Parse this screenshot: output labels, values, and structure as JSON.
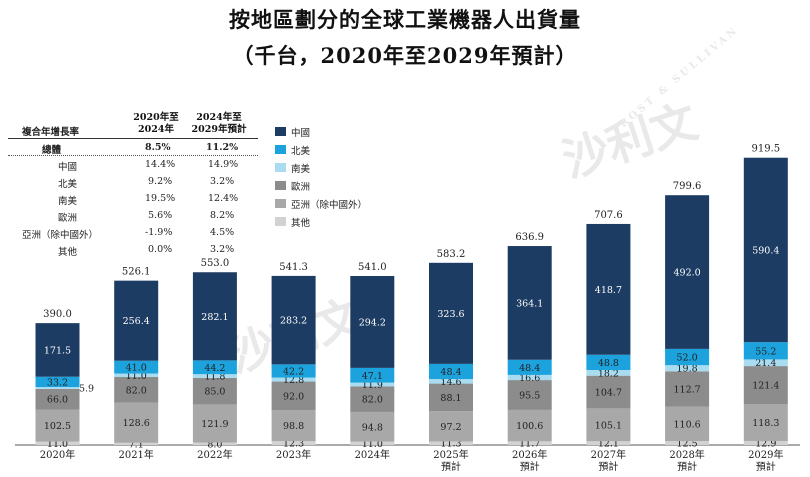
{
  "title": {
    "line1": "按地區劃分的全球工業機器人出貨量",
    "line2": "（千台，2020年至2029年預計）"
  },
  "cagr_table": {
    "header_label": "複合年增長率",
    "col1_header_line1": "2020年至",
    "col1_header_line2": "2024年",
    "col2_header_line1": "2024年至",
    "col2_header_line2": "2029年預計",
    "rows": [
      {
        "label": "總體",
        "v1": "8.5%",
        "v2": "11.2%"
      },
      {
        "label": "中國",
        "v1": "14.4%",
        "v2": "14.9%"
      },
      {
        "label": "北美",
        "v1": "9.2%",
        "v2": "3.2%"
      },
      {
        "label": "南美",
        "v1": "19.5%",
        "v2": "12.4%"
      },
      {
        "label": "歐洲",
        "v1": "5.6%",
        "v2": "8.2%"
      },
      {
        "label": "亞洲（除中國外）",
        "v1": "-1.9%",
        "v2": "4.5%"
      },
      {
        "label": "其他",
        "v1": "0.0%",
        "v2": "3.2%"
      }
    ]
  },
  "legend": [
    {
      "label": "中國",
      "color": "#1d3c63"
    },
    {
      "label": "北美",
      "color": "#1ca3dd"
    },
    {
      "label": "南美",
      "color": "#a9dcf0"
    },
    {
      "label": "歐洲",
      "color": "#8c8c8c"
    },
    {
      "label": "亞洲（除中國外）",
      "color": "#a8a8a8"
    },
    {
      "label": "其他",
      "color": "#d2d2d2"
    }
  ],
  "watermark": {
    "text1": "沙利文",
    "text2": "FROST & SULLIVAN"
  },
  "chart_data": {
    "type": "bar",
    "stacked": true,
    "categories": [
      "2020年",
      "2021年",
      "2022年",
      "2023年",
      "2024年",
      "2025年\n預計",
      "2026年\n預計",
      "2027年\n預計",
      "2028年\n預計",
      "2029年\n預計"
    ],
    "totals": [
      "390.0",
      "526.1",
      "553.0",
      "541.3",
      "541.0",
      "583.2",
      "636.9",
      "707.6",
      "799.6",
      "919.5"
    ],
    "series": [
      {
        "name": "其他",
        "color": "#d2d2d2",
        "values": [
          11.0,
          7.1,
          8.0,
          12.3,
          11.0,
          11.3,
          11.7,
          12.1,
          12.5,
          12.9
        ]
      },
      {
        "name": "亞洲（除中國外）",
        "color": "#a8a8a8",
        "values": [
          102.5,
          128.6,
          121.9,
          98.8,
          94.8,
          97.2,
          100.6,
          105.1,
          110.6,
          118.3
        ]
      },
      {
        "name": "歐洲",
        "color": "#8c8c8c",
        "values": [
          66.0,
          82.0,
          85.0,
          92.0,
          82.0,
          88.1,
          95.5,
          104.7,
          112.7,
          121.4
        ]
      },
      {
        "name": "南美",
        "color": "#a9dcf0",
        "values": [
          5.9,
          11.0,
          11.8,
          12.8,
          11.9,
          14.6,
          16.6,
          18.2,
          19.8,
          21.4
        ]
      },
      {
        "name": "北美",
        "color": "#1ca3dd",
        "values": [
          33.2,
          41.0,
          44.2,
          42.2,
          47.1,
          48.4,
          48.4,
          48.8,
          52.0,
          55.2
        ]
      },
      {
        "name": "中國",
        "color": "#1d3c63",
        "values": [
          171.5,
          256.4,
          282.1,
          283.2,
          294.2,
          323.6,
          364.1,
          418.7,
          492.0,
          590.4
        ]
      }
    ],
    "ylim": [
      0,
      940
    ]
  }
}
